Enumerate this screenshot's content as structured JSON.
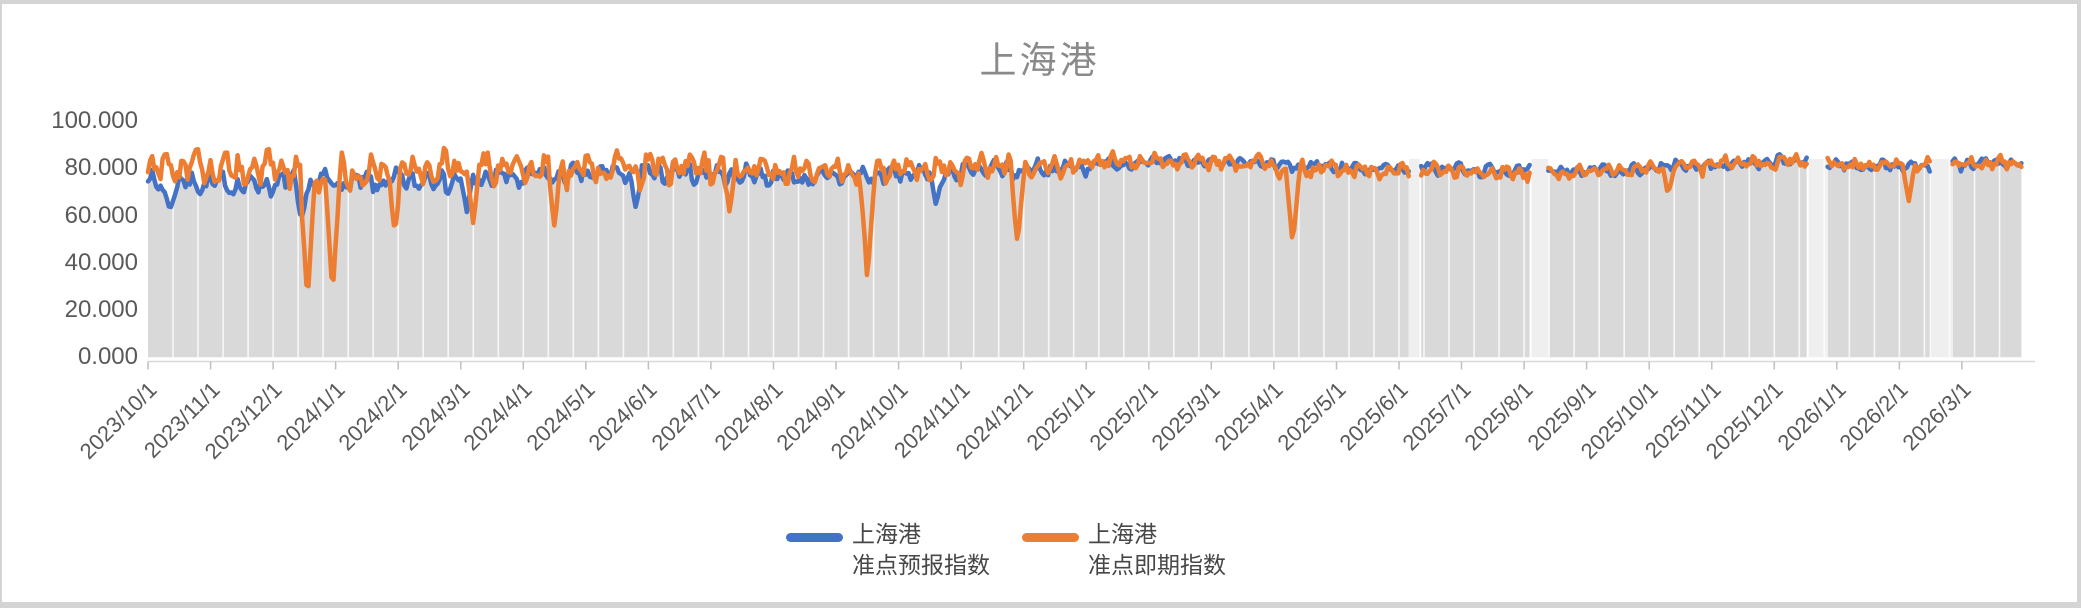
{
  "chart": {
    "title": "上海港",
    "title_color": "#8a8a8a",
    "axis_text_color": "#595959",
    "legend_text_color": "#474747",
    "background_color": "#ffffff",
    "sheet_color": "#d4d4d4"
  },
  "legend": {
    "items": [
      {
        "title": "上海港",
        "subtitle": "准点预报指数",
        "color": "#4472C4"
      },
      {
        "title": "上海港",
        "subtitle": "准点即期指数",
        "color": "#ED7D31"
      }
    ]
  },
  "chart_data": {
    "type": "line",
    "title": "上海港",
    "xlabel": "",
    "ylabel": "",
    "ylim": [
      0,
      100
    ],
    "y_ticks": [
      {
        "label": "0.000",
        "value": 0
      },
      {
        "label": "20.000",
        "value": 20
      },
      {
        "label": "40.000",
        "value": 40
      },
      {
        "label": "60.000",
        "value": 60
      },
      {
        "label": "80.000",
        "value": 80
      },
      {
        "label": "100.000",
        "value": 100
      }
    ],
    "x_tick_labels": [
      "2023/10/1",
      "2023/11/1",
      "2023/12/1",
      "2024/1/1",
      "2024/2/1",
      "2024/3/1",
      "2024/4/1",
      "2024/5/1",
      "2024/6/1",
      "2024/7/1",
      "2024/8/1",
      "2024/9/1",
      "2024/10/1",
      "2024/11/1",
      "2024/12/1",
      "2025/1/1",
      "2025/2/1",
      "2025/3/1",
      "2025/4/1",
      "2025/5/1",
      "2025/6/1",
      "2025/7/1",
      "2025/8/1",
      "2025/9/1",
      "2025/10/1",
      "2025/11/1",
      "2025/12/1",
      "2026/1/1",
      "2026/2/1",
      "2026/3/1"
    ],
    "legend_position": "bottom-center",
    "grid": "vertical white lines on gray area band only, no horizontal gridlines",
    "area_fill": "#d9d9d9",
    "gap_fill": "#efefef",
    "gap_fill_top_value": 84,
    "months_span": 29.95,
    "points_per_series": 900,
    "gaps_months": [
      [
        20.16,
        20.33
      ],
      [
        22.12,
        22.38
      ],
      [
        26.55,
        26.84
      ],
      [
        28.5,
        28.84
      ]
    ],
    "series": [
      {
        "name": "上海港 准点预报指数",
        "color": "#4472C4",
        "vmax": 88,
        "monthly_mean": [
          74,
          73,
          74,
          74,
          75,
          76,
          77,
          78,
          78,
          77,
          76,
          77,
          78,
          79,
          80,
          82,
          83,
          82,
          81,
          80,
          80,
          79,
          79,
          79,
          81,
          82,
          83,
          81,
          81,
          82
        ],
        "monthly_amp": [
          5,
          5,
          5,
          5,
          5,
          5,
          4.5,
          4.5,
          4.5,
          4,
          4,
          4,
          4,
          4,
          3.5,
          2.5,
          2.5,
          2.5,
          2.5,
          2.5,
          2.5,
          2.5,
          2.5,
          2.5,
          2.5,
          2.5,
          2.5,
          2.5,
          2.5,
          2.5
        ],
        "anomalies": [
          {
            "f": 0.35,
            "v": 63,
            "w": 0.15
          },
          {
            "f": 2.45,
            "v": 58,
            "w": 0.12
          },
          {
            "f": 5.1,
            "v": 61,
            "w": 0.1
          },
          {
            "f": 7.8,
            "v": 63,
            "w": 0.1
          },
          {
            "f": 12.6,
            "v": 64,
            "w": 0.1
          }
        ]
      },
      {
        "name": "上海港 准点即期指数",
        "color": "#ED7D31",
        "vmax": 91,
        "monthly_mean": [
          80,
          79,
          79,
          78,
          80,
          81,
          80,
          80,
          81,
          80,
          79,
          79,
          80,
          81,
          81,
          83,
          83,
          82,
          80,
          79,
          79,
          78,
          78,
          79,
          81,
          82,
          83,
          81,
          81,
          82
        ],
        "monthly_amp": [
          7,
          8,
          8,
          8,
          7,
          7,
          7,
          7,
          7,
          6,
          6,
          6,
          5.5,
          5,
          4.5,
          3.5,
          3.5,
          3.5,
          3.5,
          3.5,
          3.5,
          3,
          3,
          3,
          3.5,
          3.5,
          3.5,
          3,
          3,
          3
        ],
        "anomalies": [
          {
            "f": 2.55,
            "v": 23,
            "w": 0.13
          },
          {
            "f": 2.95,
            "v": 27,
            "w": 0.13
          },
          {
            "f": 3.95,
            "v": 53,
            "w": 0.1
          },
          {
            "f": 5.2,
            "v": 56,
            "w": 0.1
          },
          {
            "f": 6.5,
            "v": 55,
            "w": 0.1
          },
          {
            "f": 9.3,
            "v": 61,
            "w": 0.1
          },
          {
            "f": 11.5,
            "v": 32,
            "w": 0.12
          },
          {
            "f": 13.9,
            "v": 48,
            "w": 0.12
          },
          {
            "f": 18.3,
            "v": 48,
            "w": 0.12
          },
          {
            "f": 24.3,
            "v": 69,
            "w": 0.1
          },
          {
            "f": 28.15,
            "v": 66,
            "w": 0.09
          }
        ]
      }
    ]
  }
}
